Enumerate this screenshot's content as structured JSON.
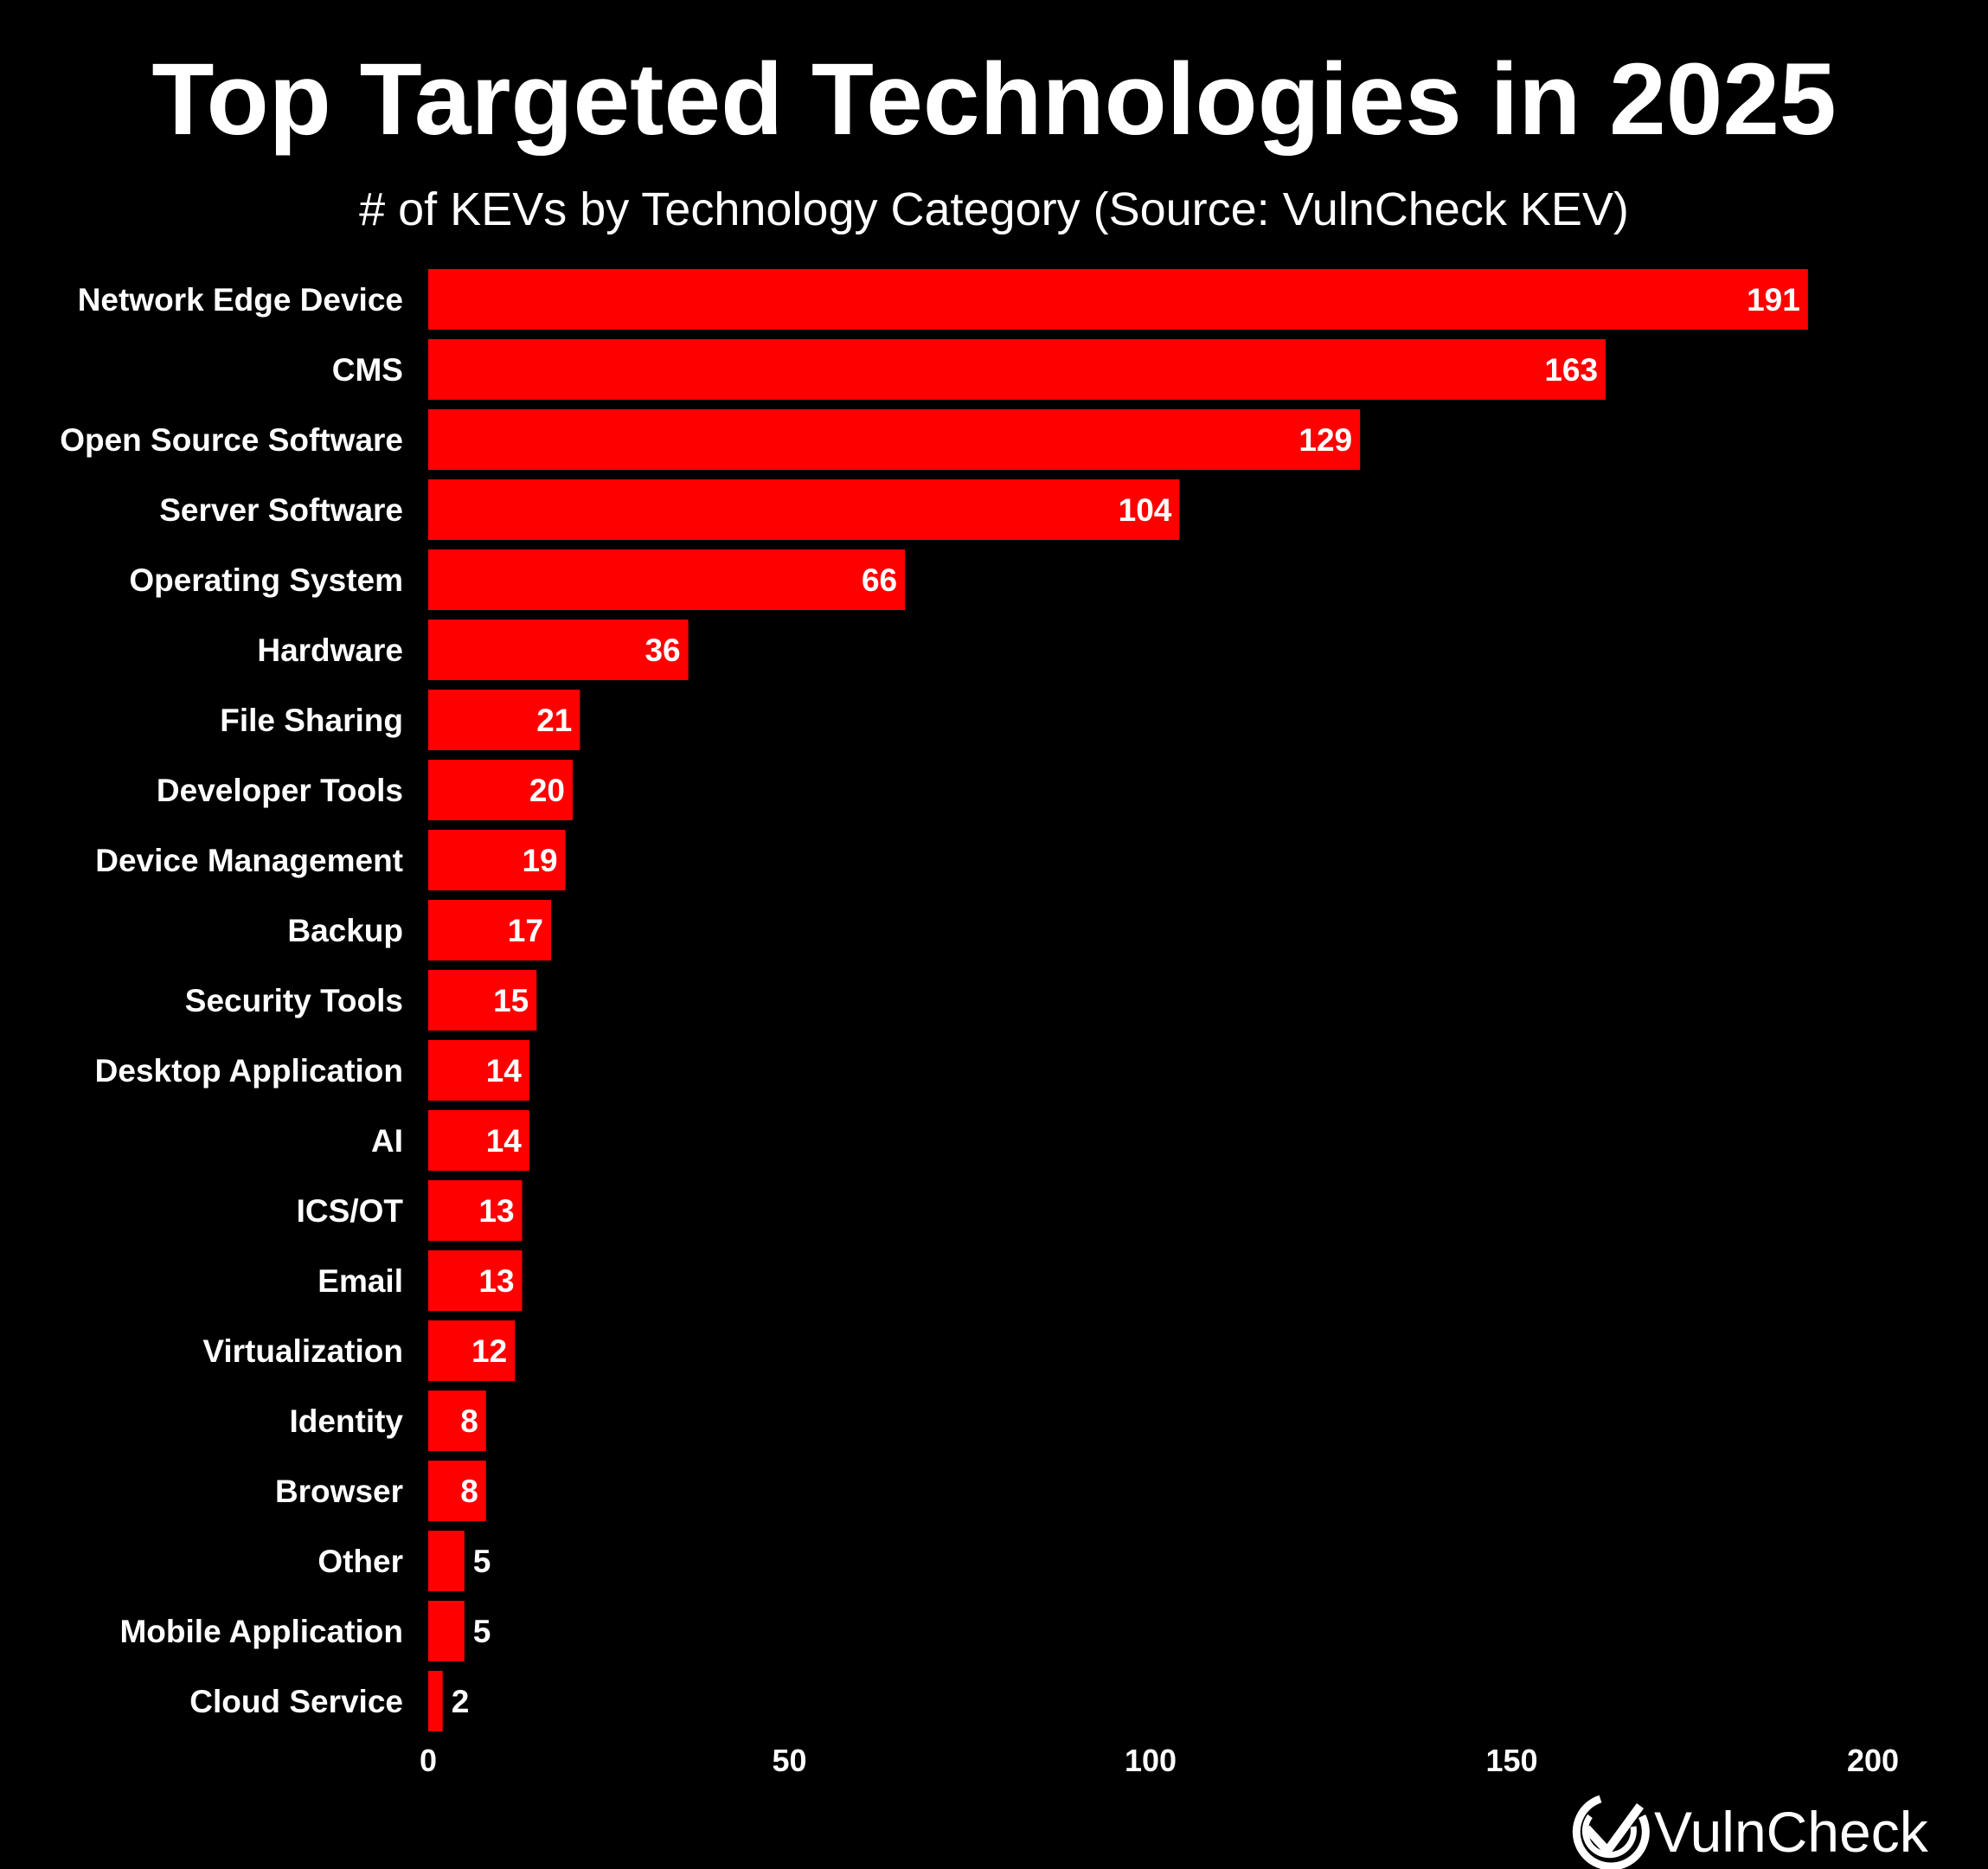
{
  "chart_data": {
    "type": "bar",
    "orientation": "horizontal",
    "title": "Top Targeted Technologies in 2025",
    "subtitle": "# of KEVs by Technology Category (Source: VulnCheck KEV)",
    "xlabel": "",
    "ylabel": "",
    "xlim": [
      0,
      200
    ],
    "xticks": [
      0,
      50,
      100,
      150,
      200
    ],
    "grid": false,
    "categories": [
      "Network Edge Device",
      "CMS",
      "Open Source Software",
      "Server Software",
      "Operating System",
      "Hardware",
      "File Sharing",
      "Developer Tools",
      "Device Management",
      "Backup",
      "Security Tools",
      "Desktop Application",
      "AI",
      "ICS/OT",
      "Email",
      "Virtualization",
      "Identity",
      "Browser",
      "Other",
      "Mobile Application",
      "Cloud Service"
    ],
    "values": [
      191,
      163,
      129,
      104,
      66,
      36,
      21,
      20,
      19,
      17,
      15,
      14,
      14,
      13,
      13,
      12,
      8,
      8,
      5,
      5,
      2
    ],
    "bar_color": "#ff0000",
    "background_color": "#000000",
    "text_color": "#ffffff"
  },
  "branding": {
    "logo_text": "VulnCheck",
    "logo_icon": "check-circle-icon"
  }
}
